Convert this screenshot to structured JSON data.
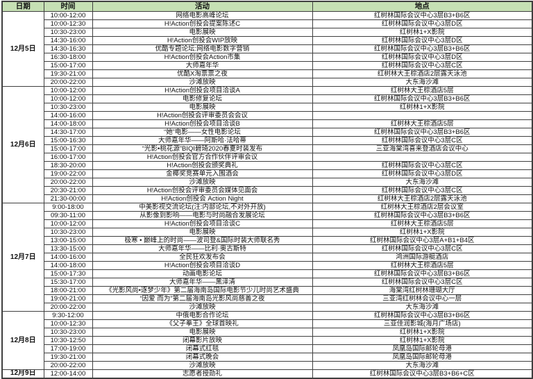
{
  "colors": {
    "header_bg": "#c6e0b4",
    "border": "#3f3f3f",
    "text": "#111111"
  },
  "header": {
    "date": "日期",
    "time": "时间",
    "event": "活动",
    "location": "地点"
  },
  "days": [
    {
      "date": "12月5日",
      "rows": [
        {
          "time": "10:00-12:00",
          "event": "网络电影高峰论坛",
          "location": "红树林国际会议中心3层B3+B6区"
        },
        {
          "time": "10:00-12:30",
          "event": "H!Action创投会提案陈述C",
          "location": "红树林国际会议中心3层D区"
        },
        {
          "time": "10:30-23:00",
          "event": "电影展映",
          "location": "红树林1+X影院"
        },
        {
          "time": "14:30-16:00",
          "event": "H!Action创投会WIP放映",
          "location": "红树林国际会议中心3层D区"
        },
        {
          "time": "14:30-16:30",
          "event": "优酷专题论坛:网络电影数字营销",
          "location": "红树林国际会议中心3层B3+B6区"
        },
        {
          "time": "16:30-18:00",
          "event": "H!Action创投会Action市集",
          "location": "红树林国际会议中心3层D区"
        },
        {
          "time": "15:00-17:00",
          "event": "大师嘉年华",
          "location": "红树林国际会议中心3层C区"
        },
        {
          "time": "19:30-21:00",
          "event": "优酷X淘票票之夜",
          "location": "红树林大王棕酒店2层露天泳池"
        },
        {
          "time": "20:00-22:00",
          "event": "沙滩放映",
          "location": "大东海沙滩"
        }
      ]
    },
    {
      "date": "12月6日",
      "rows": [
        {
          "time": "10:00-12:00",
          "event": "H!Action创投会项目洽谈A",
          "location": "红树林大王棕酒店5层"
        },
        {
          "time": "10:00-12:00",
          "event": "电影修复论坛",
          "location": "红树林国际会议中心3层B3+B6区"
        },
        {
          "time": "10:30-23:00",
          "event": "电影展映",
          "location": "红树林1+X影院"
        },
        {
          "time": "14:00-16:00",
          "event": "H!Action创投会评审委员会会议",
          "location": ""
        },
        {
          "time": "14:00-18:00",
          "event": "H!Action创投会项目洽谈B",
          "location": "红树林大王棕酒店5层"
        },
        {
          "time": "14:30-17:00",
          "event": "“她”电影——女性电影论坛",
          "location": "红树林国际会议中心3层B3+B6区"
        },
        {
          "time": "15:00-16:30",
          "event": "大师嘉年华——阿斯哈·法哈蒂",
          "location": "红树林国际会议中心3层C区"
        },
        {
          "time": "15:00-17:00",
          "event": "“光影•桃花源”BIQI碧琦2020春夏时装发布",
          "location": "三亚海棠湾喜来登酒店会议中心"
        },
        {
          "time": "16:00-17:00",
          "event": "H!Action创投会官方合作伙伴评审会议",
          "location": ""
        },
        {
          "time": "18:30-20:00",
          "event": "H!Action创投会颁奖典礼",
          "location": "红树林国际会议中心3层C区"
        },
        {
          "time": "19:00-22:00",
          "event": "金椰奖竞赛单元入围酒会",
          "location": "红树林国际会议中心3层D区"
        },
        {
          "time": "20:00-22:00",
          "event": "沙滩放映",
          "location": "大东海沙滩"
        },
        {
          "time": "20:30-21:00",
          "event": "H!Action创投会评审委员会媒体见面会",
          "location": "红树林国际会议中心3层C区"
        },
        {
          "time": "21:30-00:00",
          "event": "H!Action创投会 Action Night",
          "location": "红树林大王棕酒店2层露天泳池"
        }
      ]
    },
    {
      "date": "12月7日",
      "rows": [
        {
          "time": "9:00-18:00",
          "event": "中美影视交流论坛(注:内部论坛,不对外开放)",
          "location": "红树林大王棕酒店2层会议室"
        },
        {
          "time": "09:30-11:00",
          "event": "从影像到影响——电影与时尚融合发展论坛",
          "location": "红树林国际会议中心3层B3+B6区"
        },
        {
          "time": "10:00-12:00",
          "event": "H!Action创投会项目洽谈C",
          "location": "红树林大王棕酒店5层"
        },
        {
          "time": "10:30-23:00",
          "event": "电影展映",
          "location": "红树林1+X影院"
        },
        {
          "time": "13:00-15:00",
          "event": "极寒 • 巅峰上的时尚——波司登&国际时装大师联名秀",
          "location": "红树林国际会议中心3层A+B1+B4区"
        },
        {
          "time": "13:30-15:00",
          "event": "大师嘉年华——比利·奥古斯特",
          "location": "红树林国际会议中心3层C区"
        },
        {
          "time": "14:00-16:00",
          "event": "全民狂欢发布会",
          "location": "鸿洲国际游艇酒店"
        },
        {
          "time": "14:00-18:00",
          "event": "H!Action创投会项目洽谈D",
          "location": "红树林大王棕酒店5层"
        },
        {
          "time": "15:00-17:30",
          "event": "动画电影论坛",
          "location": "红树林国际会议中心3层B3+B6区"
        },
        {
          "time": "15:30-17:00",
          "event": "大师嘉年华——黑泽清",
          "location": "红树林国际会议中心3层C区"
        },
        {
          "time": "18:00-21:00",
          "event": "《光影风尚•逐梦少年》第二届海南岛国际电影节少儿时尚艺术盛典",
          "location": "海棠湾红树林珊瑚大厅"
        },
        {
          "time": "19:00-21:00",
          "event": "“因爱 而为”第二届海南岛光影风尚慈善之夜",
          "location": "三亚湾红树林会议中心一层"
        },
        {
          "time": "20:00-22:00",
          "event": "沙滩放映",
          "location": "大东海沙滩"
        }
      ]
    },
    {
      "date": "12月8日",
      "rows": [
        {
          "time": "9:30-12:00",
          "event": "中俄电影合作论坛",
          "location": "红树林国际会议中心3层B3+B6区"
        },
        {
          "time": "10:00-12:30",
          "event": "《父子拳王》全球首映礼",
          "location": "三亚佳润影城(海月广场店)"
        },
        {
          "time": "10:30-23:00",
          "event": "电影展映",
          "location": "红树林1+X影院"
        },
        {
          "time": "10:30-12:50",
          "event": "闭幕影片放映",
          "location": "红树林1+X影院"
        },
        {
          "time": "17:00-19:00",
          "event": "闭幕式红毯",
          "location": "凤凰岛国际邮轮母港"
        },
        {
          "time": "19:30-21:00",
          "event": "闭幕式晚会",
          "location": "凤凰岛国际邮轮母港"
        },
        {
          "time": "20:00-22:00",
          "event": "沙滩放映",
          "location": "大东海沙滩"
        }
      ]
    },
    {
      "date": "12月9日",
      "rows": [
        {
          "time": "12:00-14:00",
          "event": "志愿者授勋礼",
          "location": "红树林国际会议中心3层B3+B6+C区"
        }
      ]
    }
  ]
}
